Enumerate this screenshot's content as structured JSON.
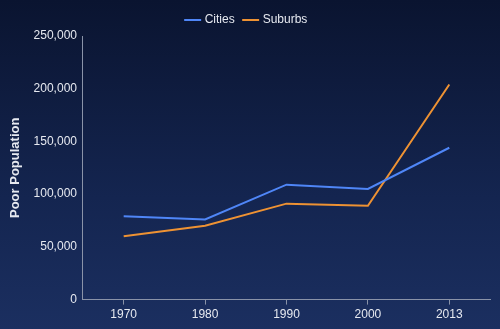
{
  "chart_data": {
    "type": "line",
    "y_label": "Poor Population",
    "categories": [
      "1970",
      "1980",
      "1990",
      "2000",
      "2013"
    ],
    "series": [
      {
        "name": "Cities",
        "color": "#4f86f7",
        "values": [
          79000,
          76000,
          109000,
          105000,
          144000
        ]
      },
      {
        "name": "Suburbs",
        "color": "#ee9233",
        "values": [
          60000,
          70000,
          91000,
          89000,
          204000
        ]
      }
    ],
    "ylim": [
      0,
      250000
    ],
    "yticks": [
      0,
      {
        "value": 50000,
        "label": "50,000"
      },
      {
        "value": 100000,
        "label": "100,000"
      },
      {
        "value": 150000,
        "label": "150,000"
      },
      {
        "value": 200000,
        "label": "200,000"
      },
      {
        "value": 250000,
        "label": "250,000"
      }
    ],
    "grid": false,
    "legend": "top"
  }
}
